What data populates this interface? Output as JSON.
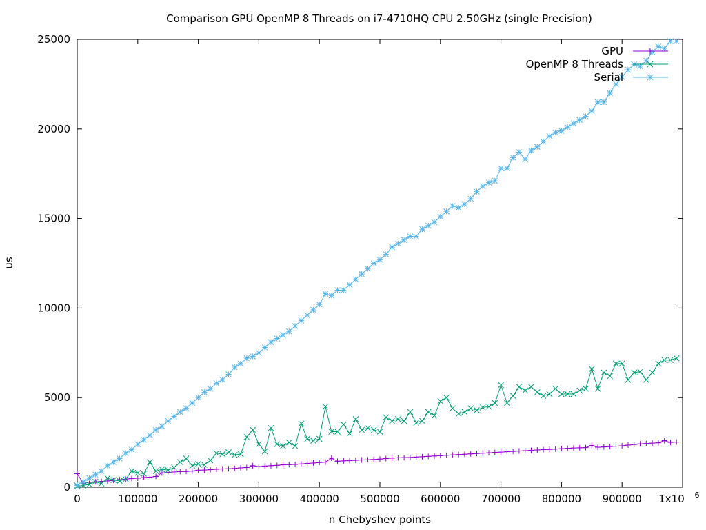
{
  "chart_data": {
    "type": "line",
    "title": "Comparison GPU OpenMP 8 Threads on i7-4710HQ CPU 2.50GHz (single Precision)",
    "xlabel": "n Chebyshev points",
    "ylabel": "us",
    "xlim": [
      0,
      1000000
    ],
    "ylim": [
      0,
      25000
    ],
    "x_ticks": [
      "0",
      "100000",
      "200000",
      "300000",
      "400000",
      "500000",
      "600000",
      "700000",
      "800000",
      "900000",
      "1x10"
    ],
    "x_tick_exponent": "6",
    "y_ticks": [
      "0",
      "5000",
      "10000",
      "15000",
      "20000",
      "25000"
    ],
    "grid": false,
    "legend_position": "top-right",
    "x": [
      0,
      10000,
      20000,
      30000,
      40000,
      50000,
      60000,
      70000,
      80000,
      90000,
      100000,
      110000,
      120000,
      130000,
      140000,
      150000,
      160000,
      170000,
      180000,
      190000,
      200000,
      210000,
      220000,
      230000,
      240000,
      250000,
      260000,
      270000,
      280000,
      290000,
      300000,
      310000,
      320000,
      330000,
      340000,
      350000,
      360000,
      370000,
      380000,
      390000,
      400000,
      410000,
      420000,
      430000,
      440000,
      450000,
      460000,
      470000,
      480000,
      490000,
      500000,
      510000,
      520000,
      530000,
      540000,
      550000,
      560000,
      570000,
      580000,
      590000,
      600000,
      610000,
      620000,
      630000,
      640000,
      650000,
      660000,
      670000,
      680000,
      690000,
      700000,
      710000,
      720000,
      730000,
      740000,
      750000,
      760000,
      770000,
      780000,
      790000,
      800000,
      810000,
      820000,
      830000,
      840000,
      850000,
      860000,
      870000,
      880000,
      890000,
      900000,
      910000,
      920000,
      930000,
      940000,
      950000,
      960000,
      970000,
      980000,
      990000
    ],
    "series": [
      {
        "name": "GPU",
        "color": "#9400d3",
        "marker": "plus",
        "values": [
          750,
          200,
          280,
          300,
          320,
          350,
          380,
          420,
          450,
          480,
          500,
          540,
          560,
          600,
          800,
          820,
          850,
          870,
          880,
          900,
          950,
          960,
          980,
          1000,
          1020,
          1030,
          1050,
          1080,
          1100,
          1200,
          1150,
          1180,
          1200,
          1220,
          1250,
          1260,
          1270,
          1300,
          1330,
          1350,
          1380,
          1400,
          1620,
          1450,
          1470,
          1480,
          1500,
          1520,
          1530,
          1550,
          1570,
          1600,
          1620,
          1640,
          1650,
          1660,
          1680,
          1700,
          1720,
          1740,
          1760,
          1780,
          1800,
          1820,
          1840,
          1860,
          1880,
          1900,
          1920,
          1940,
          1960,
          1980,
          2000,
          2020,
          2040,
          2060,
          2080,
          2100,
          2110,
          2130,
          2150,
          2170,
          2190,
          2200,
          2210,
          2330,
          2230,
          2250,
          2270,
          2290,
          2310,
          2350,
          2380,
          2420,
          2440,
          2460,
          2480,
          2600,
          2500,
          2520
        ]
      },
      {
        "name": "OpenMP 8 Threads",
        "color": "#009e73",
        "marker": "cross",
        "values": [
          50,
          100,
          150,
          300,
          200,
          500,
          400,
          350,
          450,
          900,
          800,
          750,
          1400,
          900,
          1000,
          950,
          1100,
          1400,
          1600,
          1200,
          1300,
          1250,
          1500,
          1900,
          1850,
          1950,
          1800,
          1850,
          2800,
          3200,
          2400,
          2000,
          3300,
          2400,
          2300,
          2500,
          2300,
          3550,
          2700,
          2600,
          2700,
          4500,
          3100,
          3100,
          3500,
          3000,
          3800,
          3200,
          3300,
          3200,
          3100,
          3900,
          3700,
          3800,
          3700,
          4200,
          3600,
          3700,
          4200,
          4000,
          4800,
          5000,
          4400,
          4100,
          4200,
          4400,
          4300,
          4450,
          4500,
          4700,
          5700,
          4700,
          5100,
          5600,
          5400,
          5600,
          5300,
          5100,
          5200,
          5500,
          5200,
          5200,
          5200,
          5400,
          5500,
          6600,
          5500,
          6400,
          6200,
          6900,
          6900,
          6000,
          6400,
          6450,
          6000,
          6400,
          6900,
          7100,
          7100,
          7200
        ]
      },
      {
        "name": "Serial",
        "color": "#56b4e9",
        "marker": "star",
        "values": [
          100,
          300,
          500,
          700,
          900,
          1200,
          1400,
          1600,
          1900,
          2100,
          2400,
          2650,
          2900,
          3200,
          3400,
          3700,
          3950,
          4200,
          4400,
          4700,
          5000,
          5300,
          5500,
          5800,
          6000,
          6300,
          6700,
          6900,
          7200,
          7300,
          7500,
          7800,
          8100,
          8300,
          8500,
          8700,
          9000,
          9300,
          9600,
          9900,
          10200,
          10800,
          10700,
          11000,
          11000,
          11300,
          11600,
          11900,
          12200,
          12500,
          12700,
          13000,
          13400,
          13600,
          13800,
          14000,
          14000,
          14400,
          14600,
          14800,
          15100,
          15400,
          15700,
          15600,
          15800,
          16100,
          16500,
          16800,
          17000,
          17100,
          17800,
          17800,
          18400,
          18700,
          18300,
          18800,
          19000,
          19300,
          19600,
          19800,
          19900,
          20100,
          20300,
          20500,
          20700,
          21000,
          21500,
          21500,
          22000,
          22500,
          22900,
          23300,
          23600,
          23500,
          23800,
          24300,
          24600,
          24500,
          24900,
          24900
        ]
      }
    ]
  }
}
